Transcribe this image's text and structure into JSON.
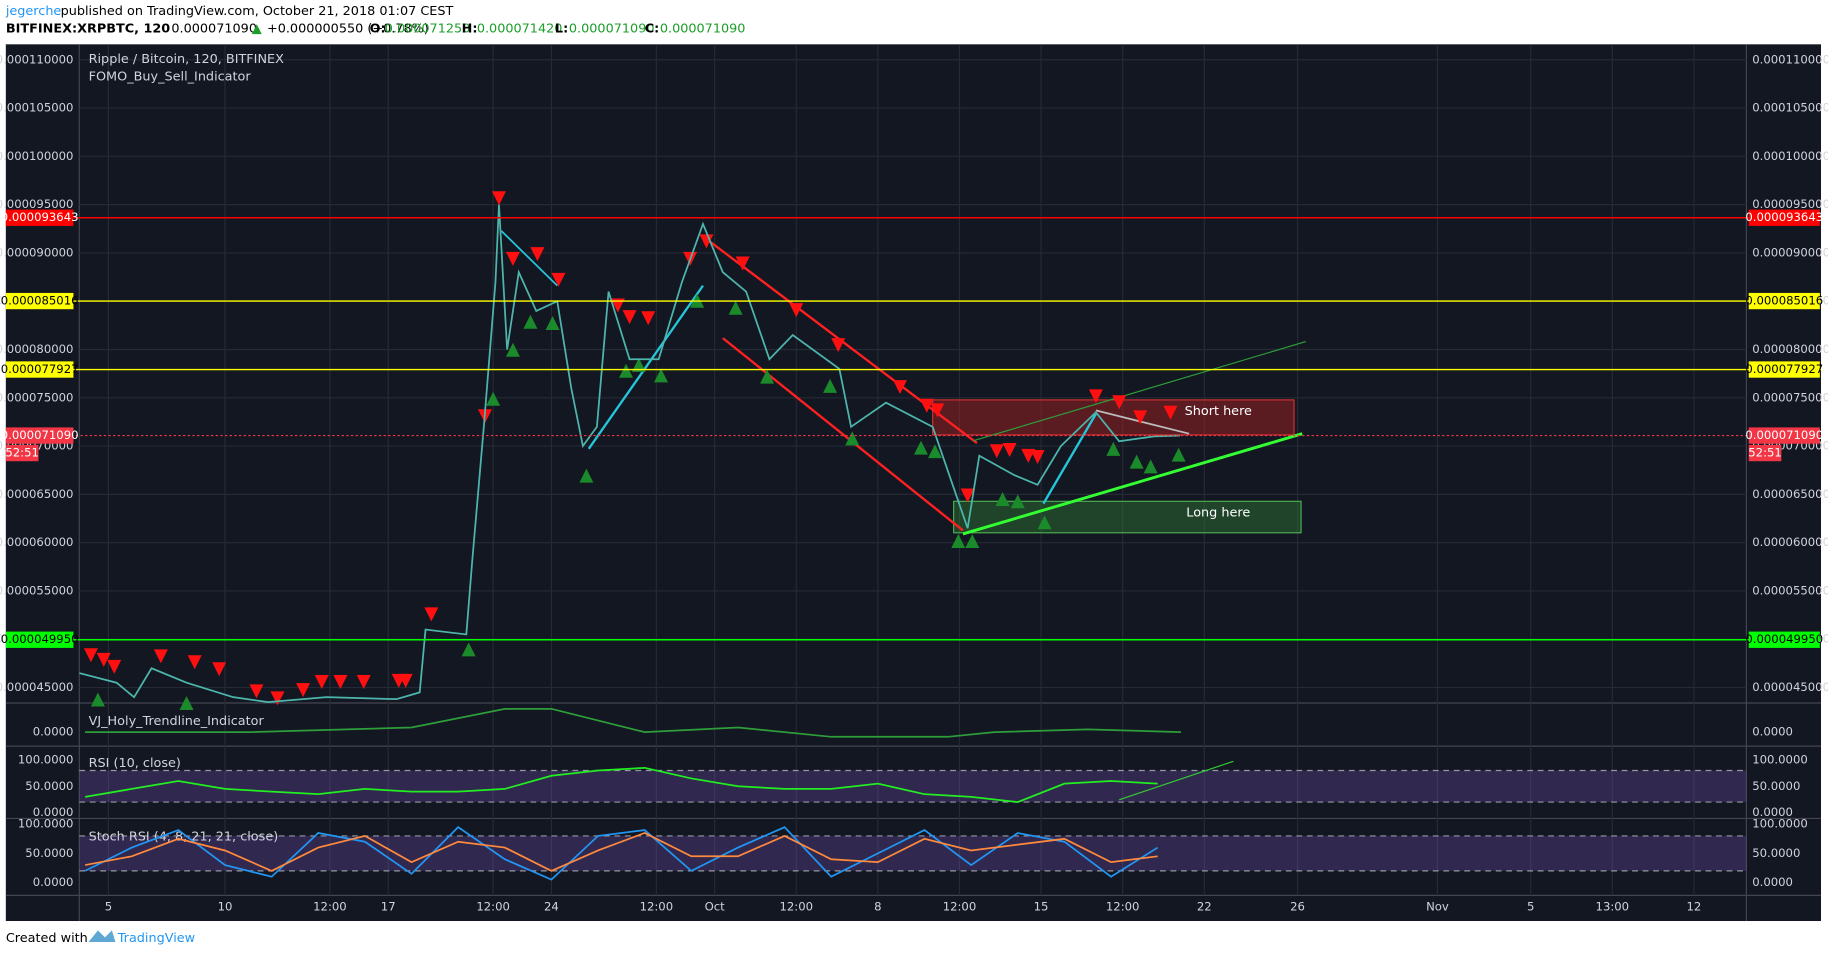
{
  "header": {
    "author": "jegerche",
    "published": "published on TradingView.com, October 21, 2018 01:07 CEST",
    "symbol": "BITFINEX:XRPBTC, 120",
    "last": "0.000071090",
    "arrow": "▲",
    "change": "+0.000000550 (+0.78%)",
    "open_label": "O:",
    "open": "0.000071250",
    "high_label": "H:",
    "high": "0.000071420",
    "low_label": "L:",
    "low": "0.000071090",
    "close_label": "C:",
    "close": "0.000071090"
  },
  "footer": {
    "created": "Created with",
    "brand": "TradingView"
  },
  "chart_data": [
    {
      "type": "line",
      "title": "Ripple / Bitcoin, 120, BITFINEX",
      "indicator": "FOMO_Buy_Sell_Indicator",
      "color": "#4db6ac",
      "x": [
        2.75,
        4.35,
        5.1,
        5.85,
        7.35,
        9.35,
        10.85,
        13.35,
        16.35,
        17.35,
        17.6,
        19.35,
        19.6,
        20.1,
        20.6,
        20.75,
        21.1,
        21.6,
        22.35,
        23.25,
        23.85,
        24.35,
        24.95,
        25.45,
        26.35,
        27.6,
        28.6,
        29.5,
        30.35,
        31.35,
        32.35,
        33.35,
        35.35,
        35.85,
        37.35,
        39.35,
        40.35,
        40.85,
        41.35,
        42.85,
        43.85,
        44.85,
        46.35,
        47.35,
        48.85,
        49.95
      ],
      "values": [
        4.65e-05,
        4.55e-05,
        4.4e-05,
        4.7e-05,
        4.55e-05,
        4.4e-05,
        4.35e-05,
        4.4e-05,
        4.38e-05,
        4.45e-05,
        5.1e-05,
        5.05e-05,
        5.8e-05,
        7.2e-05,
        8.7e-05,
        9.5e-05,
        8e-05,
        8.8e-05,
        8.4e-05,
        8.5e-05,
        7.6e-05,
        7e-05,
        7.2e-05,
        8.6e-05,
        7.9e-05,
        7.9e-05,
        8.7e-05,
        9.3e-05,
        8.8e-05,
        8.6e-05,
        7.9e-05,
        8.15e-05,
        7.8e-05,
        7.2e-05,
        7.45e-05,
        7.2e-05,
        6.5e-05,
        6.15e-05,
        6.9e-05,
        6.7e-05,
        6.6e-05,
        7e-05,
        7.35e-05,
        7.05e-05,
        7.1e-05,
        7.109e-05
      ],
      "xlim": [
        2.75,
        74.25
      ],
      "xticks": [
        {
          "value": 4,
          "label": "5"
        },
        {
          "value": 9,
          "label": "10"
        },
        {
          "value": 13.5,
          "label": "12:00"
        },
        {
          "value": 16,
          "label": "17"
        },
        {
          "value": 20.5,
          "label": "12:00"
        },
        {
          "value": 23,
          "label": "24"
        },
        {
          "value": 27.5,
          "label": "12:00"
        },
        {
          "value": 30,
          "label": "Oct"
        },
        {
          "value": 33.5,
          "label": "12:00"
        },
        {
          "value": 37,
          "label": "8"
        },
        {
          "value": 40.5,
          "label": "12:00"
        },
        {
          "value": 44,
          "label": "15"
        },
        {
          "value": 47.5,
          "label": "12:00"
        },
        {
          "value": 51,
          "label": "22"
        },
        {
          "value": 55,
          "label": "26"
        },
        {
          "value": 61,
          "label": "Nov"
        },
        {
          "value": 65,
          "label": "5"
        },
        {
          "value": 68.5,
          "label": "13:00"
        },
        {
          "value": 72,
          "label": "12"
        }
      ],
      "ylim": [
        4.34e-05,
        0.0001116
      ],
      "yticks": [
        {
          "value": 4.5e-05,
          "label": "0.000045000"
        },
        {
          "value": 5e-05,
          "label": "0.000050000"
        },
        {
          "value": 5.5e-05,
          "label": "0.000055000"
        },
        {
          "value": 6e-05,
          "label": "0.000060000"
        },
        {
          "value": 6.5e-05,
          "label": "0.000065000"
        },
        {
          "value": 7e-05,
          "label": "0.000070000"
        },
        {
          "value": 7.5e-05,
          "label": "0.000075000"
        },
        {
          "value": 8e-05,
          "label": "0.000080000"
        },
        {
          "value": 8.5e-05,
          "label": "0.000085000"
        },
        {
          "value": 9e-05,
          "label": "0.000090000"
        },
        {
          "value": 9.5e-05,
          "label": "0.000095000"
        },
        {
          "value": 0.0001,
          "label": "0.000100000"
        },
        {
          "value": 0.000105,
          "label": "0.000105000"
        },
        {
          "value": 0.00011,
          "label": "0.000110000"
        }
      ],
      "grid": true,
      "levels": [
        {
          "value": 9.3643e-05,
          "label": "0.000093643",
          "color": "#ff0000",
          "text_color": "#ffffff"
        },
        {
          "value": 8.5016e-05,
          "label": "0.000085016",
          "color": "#ffff00",
          "text_color": "#000000"
        },
        {
          "value": 7.7927e-05,
          "label": "0.000077927",
          "color": "#ffff00",
          "text_color": "#000000"
        },
        {
          "value": 4.995e-05,
          "label": "0.000049950",
          "color": "#00ff00",
          "text_color": "#000000"
        },
        {
          "value": 7.109e-05,
          "label": "0.000071090",
          "color": "#f23645",
          "text_color": "#ffffff",
          "dashed": true
        }
      ],
      "timer": "52:51",
      "annotations": [
        "Short here",
        "Long here"
      ]
    },
    {
      "type": "line",
      "title": "VJ_Holy_Trendline_Indicator",
      "color": "#2e9e3a",
      "x": [
        3,
        10,
        17,
        21,
        23,
        27,
        31,
        35,
        40,
        42,
        46,
        50
      ],
      "values": [
        0,
        0,
        5e-07,
        2.5e-06,
        2.5e-06,
        0,
        5e-07,
        -5e-07,
        -5e-07,
        0,
        3e-07,
        0
      ],
      "ylim": [
        -1.5e-06,
        3e-06
      ],
      "yticks": [
        {
          "value": 0,
          "label": "0.0000"
        }
      ]
    },
    {
      "type": "line",
      "title": "RSI (10, close)",
      "color": "#22ee22",
      "x": [
        3,
        5,
        7,
        9,
        11,
        13,
        15,
        17,
        19,
        21,
        23,
        25,
        27,
        29,
        31,
        33,
        35,
        37,
        39,
        41,
        43,
        45,
        47,
        49
      ],
      "values": [
        30,
        45,
        60,
        45,
        40,
        35,
        45,
        40,
        40,
        45,
        70,
        80,
        85,
        65,
        50,
        45,
        45,
        55,
        35,
        30,
        20,
        55,
        60,
        55
      ],
      "ylim": [
        -11,
        124
      ],
      "yticks": [
        {
          "value": 0,
          "label": "0.0000"
        },
        {
          "value": 50,
          "label": "50.0000"
        },
        {
          "value": 100,
          "label": "100.0000"
        }
      ],
      "bands": [
        80,
        20
      ]
    },
    {
      "type": "line",
      "title": "Stoch RSI (4, 8, 21, 21, close)",
      "x": [
        3,
        5,
        7,
        9,
        11,
        13,
        15,
        17,
        19,
        21,
        23,
        25,
        27,
        29,
        31,
        33,
        35,
        37,
        39,
        41,
        43,
        45,
        47,
        49
      ],
      "series": [
        {
          "color": "#2196f3",
          "values": [
            20,
            60,
            90,
            30,
            10,
            85,
            70,
            15,
            95,
            40,
            5,
            80,
            90,
            20,
            60,
            95,
            10,
            50,
            90,
            30,
            85,
            70,
            10,
            60
          ]
        },
        {
          "color": "#ff8a3d",
          "values": [
            30,
            45,
            75,
            55,
            20,
            60,
            80,
            35,
            70,
            60,
            20,
            55,
            85,
            45,
            45,
            80,
            40,
            35,
            75,
            55,
            65,
            75,
            35,
            45
          ]
        }
      ],
      "ylim": [
        -22,
        108
      ],
      "yticks": [
        {
          "value": 0,
          "label": "0.0000"
        },
        {
          "value": 50,
          "label": "50.0000"
        },
        {
          "value": 100,
          "label": "100.0000"
        }
      ],
      "bands": [
        80,
        20
      ]
    }
  ]
}
